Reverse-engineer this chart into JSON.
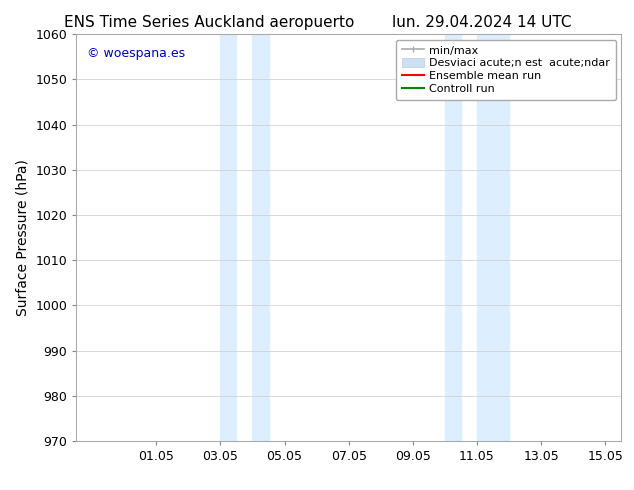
{
  "title_left": "ENS Time Series Auckland aeropuerto",
  "title_right": "lun. 29.04.2024 14 UTC",
  "ylabel": "Surface Pressure (hPa)",
  "ylim": [
    970,
    1060
  ],
  "yticks": [
    970,
    980,
    990,
    1000,
    1010,
    1020,
    1030,
    1040,
    1050,
    1060
  ],
  "xtick_labels": [
    "01.05",
    "03.05",
    "05.05",
    "07.05",
    "09.05",
    "11.05",
    "13.05",
    "15.05"
  ],
  "xtick_positions": [
    2,
    4,
    6,
    8,
    10,
    12,
    14,
    16
  ],
  "xlim": [
    -0.5,
    16.5
  ],
  "watermark": "© woespana.es",
  "watermark_color": "#0000bb",
  "background_color": "#ffffff",
  "shaded_regions": [
    {
      "xstart": 4.0,
      "xend": 4.5,
      "color": "#ddeeff"
    },
    {
      "xstart": 5.0,
      "xend": 5.5,
      "color": "#ddeeff"
    },
    {
      "xstart": 11.0,
      "xend": 11.5,
      "color": "#ddeeff"
    },
    {
      "xstart": 12.0,
      "xend": 13.0,
      "color": "#ddeeff"
    }
  ],
  "legend_label_minmax": "min/max",
  "legend_label_std": "Desviaci acute;n est  acute;ndar",
  "legend_label_ens": "Ensemble mean run",
  "legend_label_ctrl": "Controll run",
  "minmax_color": "#aaaaaa",
  "std_color": "#cce0f0",
  "ens_color": "#ff0000",
  "ctrl_color": "#008800",
  "title_fontsize": 11,
  "axis_label_fontsize": 10,
  "tick_fontsize": 9,
  "legend_fontsize": 8,
  "grid_color": "#cccccc"
}
